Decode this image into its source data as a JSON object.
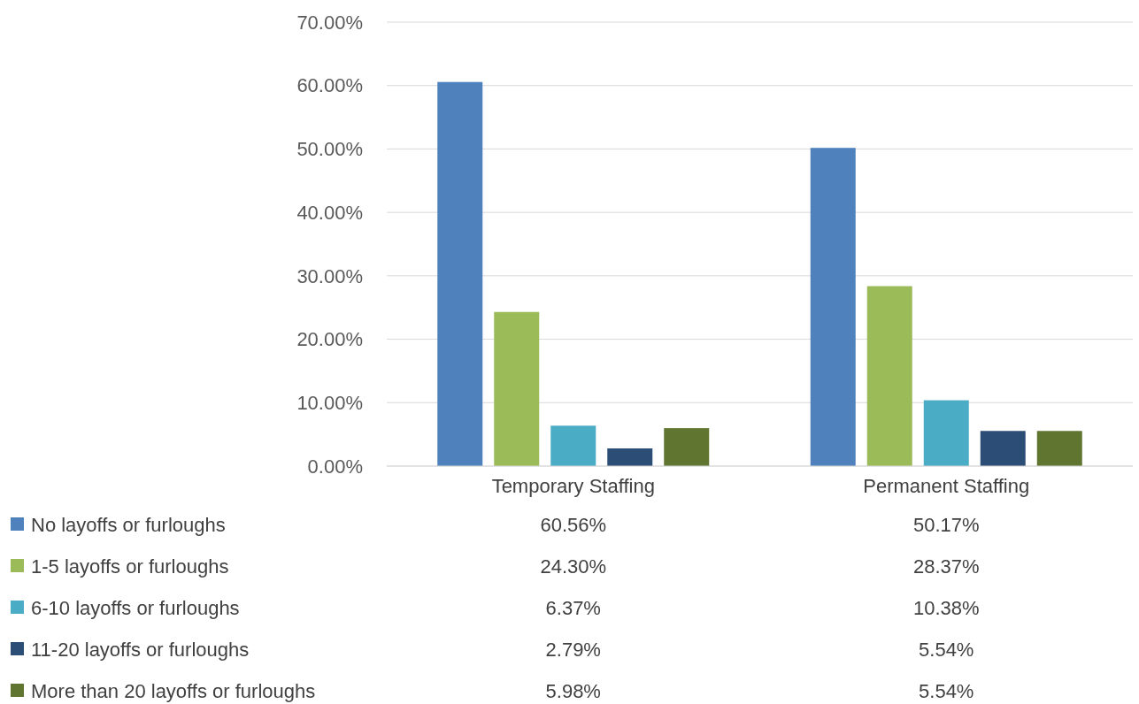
{
  "chart_data": {
    "type": "bar",
    "categories": [
      "Temporary Staffing",
      "Permanent Staffing"
    ],
    "series": [
      {
        "name": "No layoffs or furloughs",
        "color": "#4f81bd",
        "values": [
          60.56,
          50.17
        ],
        "value_labels": [
          "60.56%",
          "50.17%"
        ]
      },
      {
        "name": "1-5 layoffs or furloughs",
        "color": "#9bbb59",
        "values": [
          24.3,
          28.37
        ],
        "value_labels": [
          "24.30%",
          "28.37%"
        ]
      },
      {
        "name": "6-10 layoffs or furloughs",
        "color": "#4bacc6",
        "values": [
          6.37,
          10.38
        ],
        "value_labels": [
          "6.37%",
          "10.38%"
        ]
      },
      {
        "name": "11-20 layoffs or furloughs",
        "color": "#2c4d75",
        "values": [
          2.79,
          5.54
        ],
        "value_labels": [
          "2.79%",
          "5.54%"
        ]
      },
      {
        "name": "More than 20 layoffs or furloughs",
        "color": "#5f7530",
        "values": [
          5.98,
          5.54
        ],
        "value_labels": [
          "5.98%",
          "5.54%"
        ]
      }
    ],
    "ylim": [
      0,
      70
    ],
    "yticks": [
      {
        "value": 0,
        "label": "0.00%"
      },
      {
        "value": 10,
        "label": "10.00%"
      },
      {
        "value": 20,
        "label": "20.00%"
      },
      {
        "value": 30,
        "label": "30.00%"
      },
      {
        "value": 40,
        "label": "40.00%"
      },
      {
        "value": 50,
        "label": "50.00%"
      },
      {
        "value": 60,
        "label": "60.00%"
      },
      {
        "value": 70,
        "label": "70.00%"
      }
    ],
    "grid": "y",
    "legend": "bottom"
  }
}
